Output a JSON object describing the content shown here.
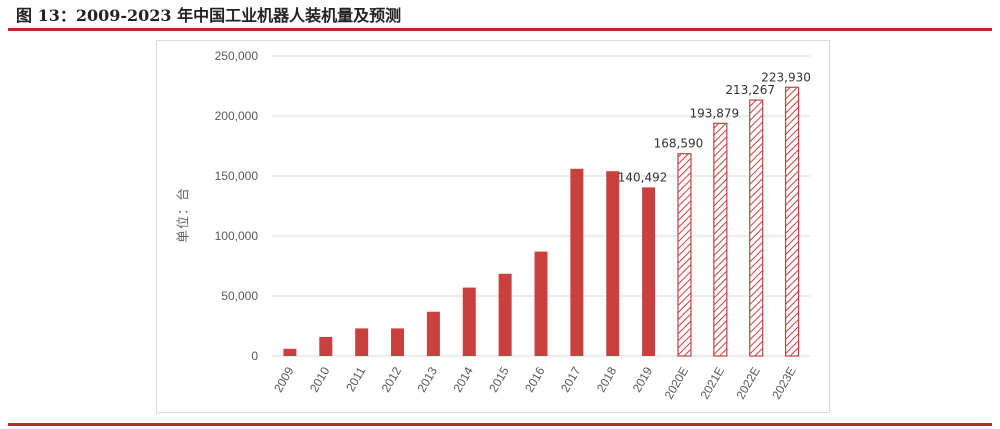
{
  "figure": {
    "title": "图  13：2009-2023 年中国工业机器人装机量及预测"
  },
  "colors": {
    "accent": "#c0272d",
    "bar": "#c9403f",
    "axis_text": "#595959",
    "gridline": "#d9d9d9"
  },
  "chart_data": {
    "type": "bar",
    "categories": [
      "2009",
      "2010",
      "2011",
      "2012",
      "2013",
      "2014",
      "2015",
      "2016",
      "2017",
      "2018",
      "2019",
      "2020E",
      "2021E",
      "2022E",
      "2023E"
    ],
    "values": [
      6000,
      15900,
      23000,
      23000,
      36900,
      57000,
      68500,
      87000,
      156000,
      154000,
      140492,
      168590,
      193879,
      213267,
      223930
    ],
    "forecast": [
      false,
      false,
      false,
      false,
      false,
      false,
      false,
      false,
      false,
      false,
      false,
      true,
      true,
      true,
      true
    ],
    "data_labels": [
      "",
      "",
      "",
      "",
      "",
      "",
      "",
      "",
      "",
      "",
      "140,492",
      "168,590",
      "193,879",
      "213,267",
      "223,930"
    ],
    "ylabel": "单位：台",
    "ylim": [
      0,
      250000
    ],
    "yticks": [
      0,
      50000,
      100000,
      150000,
      200000,
      250000
    ],
    "ytick_labels": [
      "0",
      "50,000",
      "100,000",
      "150,000",
      "200,000",
      "250,000"
    ],
    "grid": true,
    "legend": "none"
  }
}
